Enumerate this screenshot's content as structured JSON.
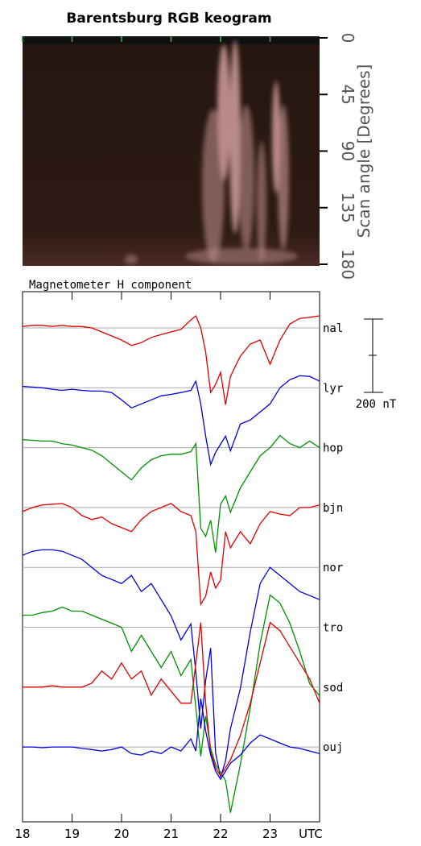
{
  "chart_data": [
    {
      "type": "keogram",
      "title": "Barentsburg RGB keogram",
      "y_label": "Scan angle [Degrees]",
      "ylim": [
        0,
        180
      ],
      "yticks": [
        0,
        45,
        90,
        135,
        180
      ]
    },
    {
      "type": "line",
      "title": "Magnetometer H component",
      "x_label": "UTC",
      "xlim": [
        18,
        24
      ],
      "xticks": [
        18,
        19,
        20,
        21,
        22,
        23
      ],
      "scale_bar": {
        "value": 200,
        "label": "200 nT"
      },
      "x": [
        18,
        18.2,
        18.4,
        18.6,
        18.8,
        19,
        19.2,
        19.4,
        19.6,
        19.8,
        20,
        20.2,
        20.4,
        20.6,
        20.8,
        21,
        21.2,
        21.4,
        21.5,
        21.6,
        21.7,
        21.8,
        21.9,
        22,
        22.1,
        22.2,
        22.4,
        22.6,
        22.8,
        23,
        23.2,
        23.4,
        23.6,
        23.8,
        24
      ],
      "series": [
        {
          "name": "nal",
          "color": "#e00000",
          "values": [
            4,
            7,
            7,
            4,
            7,
            4,
            4,
            0,
            -11,
            -22,
            -33,
            -48,
            -40,
            -26,
            -18,
            -11,
            -4,
            22,
            33,
            0,
            -66,
            -176,
            -154,
            -121,
            -209,
            -132,
            -77,
            -44,
            -33,
            -99,
            -33,
            11,
            26,
            29,
            33
          ]
        },
        {
          "name": "lyr",
          "color": "#0000e0",
          "values": [
            4,
            2,
            0,
            -4,
            -7,
            -4,
            -7,
            -9,
            -9,
            -13,
            -33,
            -55,
            -44,
            -33,
            -22,
            -18,
            -13,
            -7,
            18,
            -44,
            -132,
            -209,
            -176,
            -154,
            -132,
            -172,
            -99,
            -88,
            -66,
            -44,
            0,
            22,
            33,
            31,
            18
          ]
        },
        {
          "name": "hop",
          "color": "#009000",
          "values": [
            22,
            20,
            18,
            18,
            11,
            7,
            0,
            -7,
            -22,
            -44,
            -66,
            -88,
            -55,
            -33,
            -22,
            -18,
            -18,
            -11,
            11,
            -220,
            -242,
            -198,
            -286,
            -154,
            -132,
            -176,
            -110,
            -66,
            -22,
            0,
            33,
            11,
            0,
            18,
            0
          ]
        },
        {
          "name": "bjn",
          "color": "#e00000",
          "values": [
            -11,
            0,
            7,
            9,
            11,
            0,
            -22,
            -33,
            -26,
            -44,
            -55,
            -66,
            -33,
            -11,
            0,
            11,
            -11,
            -22,
            -66,
            -264,
            -242,
            -176,
            -220,
            -198,
            -66,
            -110,
            -66,
            -99,
            -44,
            -11,
            -18,
            -22,
            0,
            0,
            7
          ]
        },
        {
          "name": "nor",
          "color": "#0000e0",
          "values": [
            33,
            44,
            48,
            48,
            44,
            33,
            22,
            0,
            -22,
            -33,
            -44,
            -22,
            -66,
            -44,
            -88,
            -132,
            -198,
            -154,
            -286,
            -440,
            -308,
            -220,
            -506,
            -572,
            -528,
            -440,
            -330,
            -176,
            -44,
            0,
            -22,
            -44,
            -66,
            -77,
            -88
          ]
        },
        {
          "name": "tro",
          "color": "#009000",
          "values": [
            33,
            33,
            40,
            44,
            55,
            44,
            44,
            33,
            22,
            11,
            0,
            -66,
            -22,
            -66,
            -110,
            -66,
            -132,
            -88,
            -220,
            -352,
            -242,
            -330,
            -374,
            -396,
            -418,
            -506,
            -374,
            -220,
            -44,
            88,
            66,
            11,
            -66,
            -154,
            -187
          ]
        },
        {
          "name": "sod",
          "color": "#e00000",
          "values": [
            0,
            0,
            0,
            4,
            0,
            0,
            0,
            11,
            44,
            22,
            66,
            22,
            44,
            -22,
            22,
            -11,
            -44,
            -44,
            66,
            176,
            -44,
            -176,
            -220,
            -242,
            -220,
            -198,
            -132,
            -44,
            66,
            176,
            154,
            110,
            66,
            22,
            -44
          ]
        },
        {
          "name": "ouj",
          "color": "#0000e0",
          "values": [
            0,
            0,
            -2,
            0,
            0,
            0,
            -4,
            -7,
            -11,
            -7,
            0,
            -18,
            -22,
            -11,
            -18,
            0,
            -11,
            22,
            -11,
            132,
            44,
            -22,
            -66,
            -88,
            -66,
            -44,
            -22,
            11,
            33,
            22,
            11,
            0,
            -4,
            -11,
            -18
          ]
        }
      ]
    }
  ]
}
